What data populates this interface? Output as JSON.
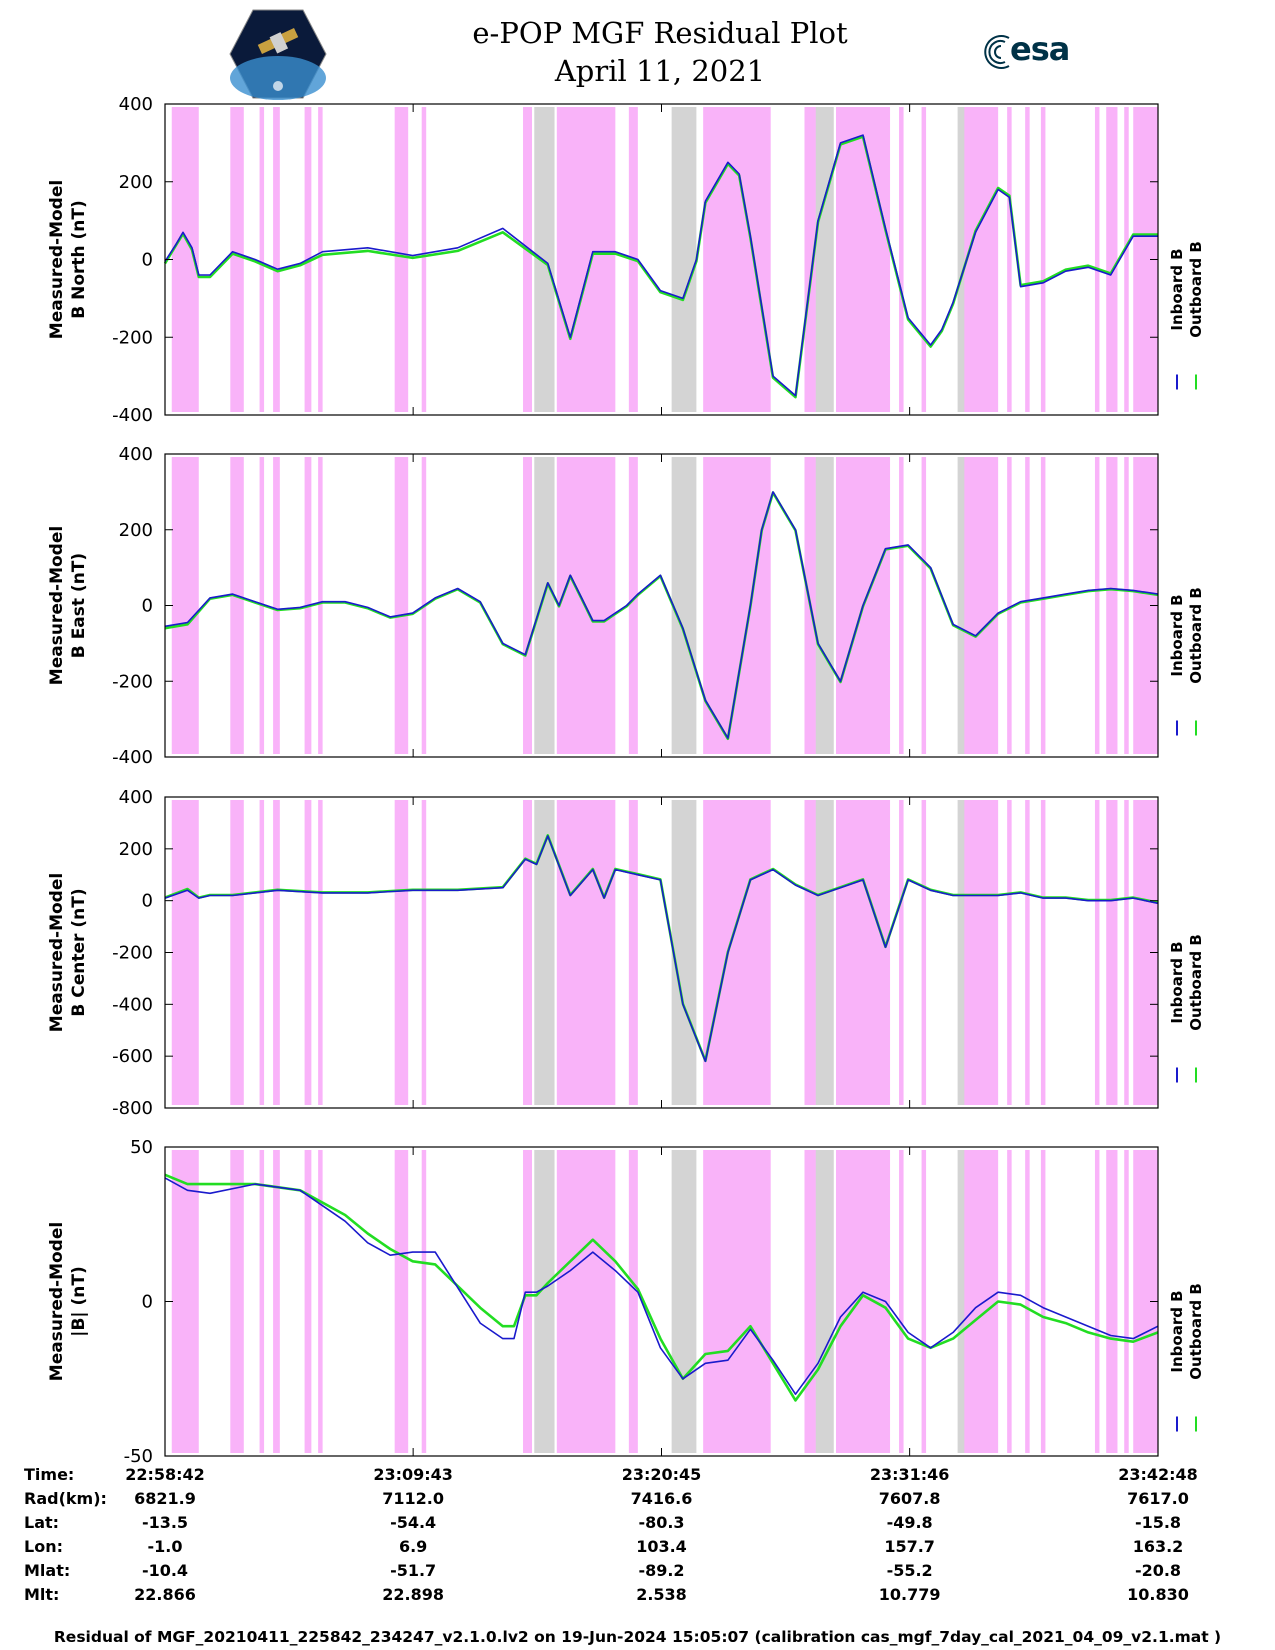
{
  "header": {
    "title_line1": "e-POP MGF Residual Plot",
    "title_line2": "April 11, 2021",
    "left_logo": "satellite-mission-logo",
    "right_logo_text": "esa"
  },
  "colors": {
    "pink_region": "#f9b3f9",
    "gray_region": "#d4d4d4",
    "inboard": "#1a1acc",
    "outboard": "#22dd22"
  },
  "legend": {
    "inboard_label": "Inboard B",
    "outboard_label": "Outboard B"
  },
  "chart_data": [
    {
      "type": "line",
      "ylabel_line1": "Measured-Model",
      "ylabel_line2": "B North (nT)",
      "ylim": [
        -400,
        400
      ],
      "yticks": [
        400,
        200,
        0,
        -200,
        -400
      ],
      "x_unit": "minutes since 22:58:42",
      "xlim": [
        0,
        44.1
      ],
      "series": [
        {
          "name": "Inboard B",
          "x": [
            0,
            0.5,
            0.8,
            1.2,
            1.5,
            2,
            3,
            4,
            5,
            6,
            7,
            9,
            11,
            13,
            15,
            17,
            18,
            19,
            20,
            21,
            22,
            23,
            23.6,
            24,
            25,
            25.5,
            26,
            27,
            28,
            29,
            30,
            31,
            32,
            33,
            34,
            34.5,
            35,
            36,
            37,
            37.5,
            38,
            39,
            40,
            41,
            42,
            43,
            44.1
          ],
          "values": [
            -5,
            40,
            70,
            30,
            -40,
            -40,
            20,
            0,
            -25,
            -10,
            20,
            30,
            10,
            30,
            80,
            -10,
            -200,
            20,
            20,
            0,
            -80,
            -100,
            0,
            150,
            250,
            220,
            60,
            -300,
            -350,
            100,
            300,
            320,
            80,
            -150,
            -220,
            -180,
            -110,
            70,
            180,
            160,
            -70,
            -60,
            -30,
            -20,
            -40,
            60,
            60
          ]
        },
        {
          "name": "Outboard B",
          "x": [
            0,
            0.5,
            0.8,
            1.2,
            1.5,
            2,
            3,
            4,
            5,
            6,
            7,
            9,
            11,
            13,
            15,
            17,
            18,
            19,
            20,
            21,
            22,
            23,
            23.6,
            24,
            25,
            25.5,
            26,
            27,
            28,
            29,
            30,
            31,
            32,
            33,
            34,
            34.5,
            35,
            36,
            37,
            37.5,
            38,
            39,
            40,
            41,
            42,
            43,
            44.1
          ],
          "values": [
            -10,
            38,
            66,
            25,
            -45,
            -45,
            15,
            -5,
            -30,
            -15,
            12,
            22,
            4,
            22,
            70,
            -14,
            -204,
            15,
            15,
            -4,
            -84,
            -104,
            -4,
            146,
            246,
            216,
            56,
            -304,
            -354,
            96,
            296,
            316,
            76,
            -154,
            -224,
            -184,
            -114,
            74,
            184,
            164,
            -66,
            -56,
            -26,
            -16,
            -36,
            64,
            64
          ]
        }
      ]
    },
    {
      "type": "line",
      "ylabel_line1": "Measured-Model",
      "ylabel_line2": "B East (nT)",
      "ylim": [
        -400,
        400
      ],
      "yticks": [
        400,
        200,
        0,
        -200,
        -400
      ],
      "x_unit": "minutes since 22:58:42",
      "xlim": [
        0,
        44.1
      ],
      "series": [
        {
          "name": "Inboard B",
          "x": [
            0,
            1,
            2,
            3,
            4,
            5,
            6,
            7,
            8,
            9,
            10,
            11,
            12,
            13,
            14,
            15,
            16,
            17,
            17.5,
            18,
            18.5,
            19,
            19.5,
            20,
            20.5,
            21,
            22,
            23,
            24,
            25,
            26,
            26.5,
            27,
            28,
            29,
            30,
            31,
            32,
            33,
            34,
            35,
            36,
            37,
            38,
            39,
            40,
            41,
            42,
            43,
            44.1
          ],
          "values": [
            -55,
            -45,
            20,
            30,
            10,
            -10,
            -5,
            10,
            10,
            -5,
            -30,
            -20,
            20,
            45,
            10,
            -100,
            -130,
            60,
            0,
            80,
            20,
            -40,
            -40,
            -20,
            0,
            30,
            80,
            -60,
            -250,
            -350,
            0,
            200,
            300,
            200,
            -100,
            -200,
            0,
            150,
            160,
            100,
            -50,
            -80,
            -20,
            10,
            20,
            30,
            40,
            45,
            40,
            30
          ]
        },
        {
          "name": "Outboard B",
          "x": [
            0,
            1,
            2,
            3,
            4,
            5,
            6,
            7,
            8,
            9,
            10,
            11,
            12,
            13,
            14,
            15,
            16,
            17,
            17.5,
            18,
            18.5,
            19,
            19.5,
            20,
            20.5,
            21,
            22,
            23,
            24,
            25,
            26,
            26.5,
            27,
            28,
            29,
            30,
            31,
            32,
            33,
            34,
            35,
            36,
            37,
            38,
            39,
            40,
            41,
            42,
            43,
            44.1
          ],
          "values": [
            -60,
            -50,
            18,
            28,
            8,
            -12,
            -7,
            8,
            8,
            -7,
            -32,
            -22,
            18,
            43,
            8,
            -102,
            -132,
            58,
            -2,
            78,
            18,
            -42,
            -42,
            -22,
            -2,
            28,
            78,
            -62,
            -252,
            -352,
            -2,
            198,
            298,
            198,
            -102,
            -202,
            -2,
            148,
            158,
            98,
            -52,
            -82,
            -22,
            8,
            18,
            28,
            38,
            43,
            38,
            28
          ]
        }
      ]
    },
    {
      "type": "line",
      "ylabel_line1": "Measured-Model",
      "ylabel_line2": "B Center (nT)",
      "ylim": [
        -800,
        400
      ],
      "yticks": [
        400,
        200,
        0,
        -200,
        -400,
        -600,
        -800
      ],
      "x_unit": "minutes since 22:58:42",
      "xlim": [
        0,
        44.1
      ],
      "series": [
        {
          "name": "Inboard B",
          "x": [
            0,
            1,
            1.5,
            2,
            3,
            5,
            7,
            9,
            11,
            13,
            15,
            16,
            16.5,
            17,
            18,
            19,
            19.5,
            20,
            20.5,
            21,
            22,
            23,
            24,
            25,
            26,
            27,
            28,
            29,
            30,
            31,
            32,
            33,
            34,
            35,
            36,
            37,
            38,
            39,
            40,
            41,
            42,
            43,
            44.1
          ],
          "values": [
            10,
            40,
            10,
            20,
            20,
            40,
            30,
            30,
            40,
            40,
            50,
            160,
            140,
            250,
            20,
            120,
            10,
            120,
            110,
            100,
            80,
            -400,
            -620,
            -200,
            80,
            120,
            60,
            20,
            50,
            80,
            -180,
            80,
            40,
            20,
            20,
            20,
            30,
            10,
            10,
            0,
            0,
            10,
            -10
          ]
        },
        {
          "name": "Outboard B",
          "x": [
            0,
            1,
            1.5,
            2,
            3,
            5,
            7,
            9,
            11,
            13,
            15,
            16,
            16.5,
            17,
            18,
            19,
            19.5,
            20,
            20.5,
            21,
            22,
            23,
            24,
            25,
            26,
            27,
            28,
            29,
            30,
            31,
            32,
            33,
            34,
            35,
            36,
            37,
            38,
            39,
            40,
            41,
            42,
            43,
            44.1
          ],
          "values": [
            12,
            45,
            12,
            22,
            22,
            42,
            32,
            32,
            42,
            42,
            52,
            162,
            142,
            252,
            22,
            122,
            12,
            122,
            112,
            102,
            82,
            -398,
            -618,
            -198,
            82,
            122,
            62,
            22,
            52,
            82,
            -178,
            82,
            42,
            22,
            22,
            22,
            32,
            12,
            12,
            2,
            2,
            12,
            -8
          ]
        }
      ]
    },
    {
      "type": "line",
      "ylabel_line1": "Measured-Model",
      "ylabel_line2": "|B| (nT)",
      "ylim": [
        -50,
        50
      ],
      "yticks": [
        50,
        0,
        -50
      ],
      "x_unit": "minutes since 22:58:42",
      "xlim": [
        0,
        44.1
      ],
      "series": [
        {
          "name": "Inboard B",
          "x": [
            0,
            1,
            2,
            4,
            6,
            8,
            9,
            10,
            11,
            12,
            14,
            15,
            15.5,
            16,
            16.5,
            17,
            18,
            19,
            20,
            21,
            22,
            23,
            24,
            25,
            26,
            27,
            28,
            29,
            30,
            31,
            32,
            33,
            34,
            35,
            36,
            37,
            38,
            39,
            40,
            41,
            42,
            43,
            44.1
          ],
          "values": [
            40,
            36,
            35,
            38,
            36,
            26,
            19,
            15,
            16,
            16,
            -7,
            -12,
            -12,
            3,
            3,
            5,
            10,
            16,
            10,
            3,
            -15,
            -25,
            -20,
            -19,
            -9,
            -19,
            -30,
            -20,
            -5,
            3,
            0,
            -10,
            -15,
            -10,
            -2,
            3,
            2,
            -2,
            -5,
            -8,
            -11,
            -12,
            -8
          ]
        },
        {
          "name": "Outboard B",
          "x": [
            0,
            1,
            2,
            4,
            6,
            8,
            9,
            10,
            11,
            12,
            14,
            15,
            15.5,
            16,
            16.5,
            17,
            18,
            19,
            20,
            21,
            22,
            23,
            24,
            25,
            26,
            27,
            28,
            29,
            30,
            31,
            32,
            33,
            34,
            35,
            36,
            37,
            38,
            39,
            40,
            41,
            42,
            43,
            44.1
          ],
          "values": [
            41,
            38,
            38,
            38,
            36,
            28,
            22,
            17,
            13,
            12,
            -2,
            -8,
            -8,
            2,
            2,
            6,
            13,
            20,
            13,
            4,
            -12,
            -25,
            -17,
            -16,
            -8,
            -20,
            -32,
            -22,
            -8,
            2,
            -2,
            -12,
            -15,
            -12,
            -6,
            0,
            -1,
            -5,
            -7,
            -10,
            -12,
            -13,
            -10
          ]
        }
      ]
    }
  ],
  "time_axis": {
    "ticks": [
      "22:58:42",
      "23:09:43",
      "23:20:45",
      "23:31:46",
      "23:42:48"
    ],
    "tick_minutes": [
      0,
      11.02,
      22.05,
      33.07,
      44.1
    ],
    "rows": [
      {
        "label": "Time:",
        "values": [
          "22:58:42",
          "23:09:43",
          "23:20:45",
          "23:31:46",
          "23:42:48"
        ]
      },
      {
        "label": "Rad(km):",
        "values": [
          "6821.9",
          "7112.0",
          "7416.6",
          "7607.8",
          "7617.0"
        ]
      },
      {
        "label": "Lat:",
        "values": [
          "-13.5",
          "-54.4",
          "-80.3",
          "-49.8",
          "-15.8"
        ]
      },
      {
        "label": "Lon:",
        "values": [
          "-1.0",
          "6.9",
          "103.4",
          "157.7",
          "163.2"
        ]
      },
      {
        "label": "Mlat:",
        "values": [
          "-10.4",
          "-51.7",
          "-89.2",
          "-55.2",
          "-20.8"
        ]
      },
      {
        "label": "Mlt:",
        "values": [
          "22.866",
          "22.898",
          "2.538",
          "10.779",
          "10.830"
        ]
      }
    ]
  },
  "shaded_regions": {
    "pink": [
      [
        0.3,
        1.5
      ],
      [
        2.9,
        3.5
      ],
      [
        4.2,
        4.4
      ],
      [
        4.8,
        5.1
      ],
      [
        6.2,
        6.5
      ],
      [
        6.8,
        7.0
      ],
      [
        10.2,
        10.8
      ],
      [
        11.4,
        11.6
      ],
      [
        15.9,
        16.3
      ],
      [
        17.4,
        20.0
      ],
      [
        20.6,
        21.0
      ],
      [
        23.9,
        26.9
      ],
      [
        28.4,
        29.0
      ],
      [
        29.8,
        32.2
      ],
      [
        32.6,
        32.8
      ],
      [
        33.6,
        33.8
      ],
      [
        35.3,
        37.0
      ],
      [
        37.4,
        37.6
      ],
      [
        38.2,
        38.4
      ],
      [
        38.9,
        39.1
      ],
      [
        41.3,
        41.5
      ],
      [
        41.8,
        42.3
      ],
      [
        42.6,
        42.8
      ],
      [
        43.0,
        44.1
      ]
    ],
    "gray": [
      [
        16.4,
        17.3
      ],
      [
        22.5,
        23.6
      ],
      [
        28.9,
        29.7
      ],
      [
        35.2,
        35.5
      ]
    ]
  },
  "footer": "Residual of MGF_20210411_225842_234247_v2.1.0.lv2 on 19-Jun-2024 15:05:07 (calibration cas_mgf_7day_cal_2021_04_09_v2.1.mat )"
}
